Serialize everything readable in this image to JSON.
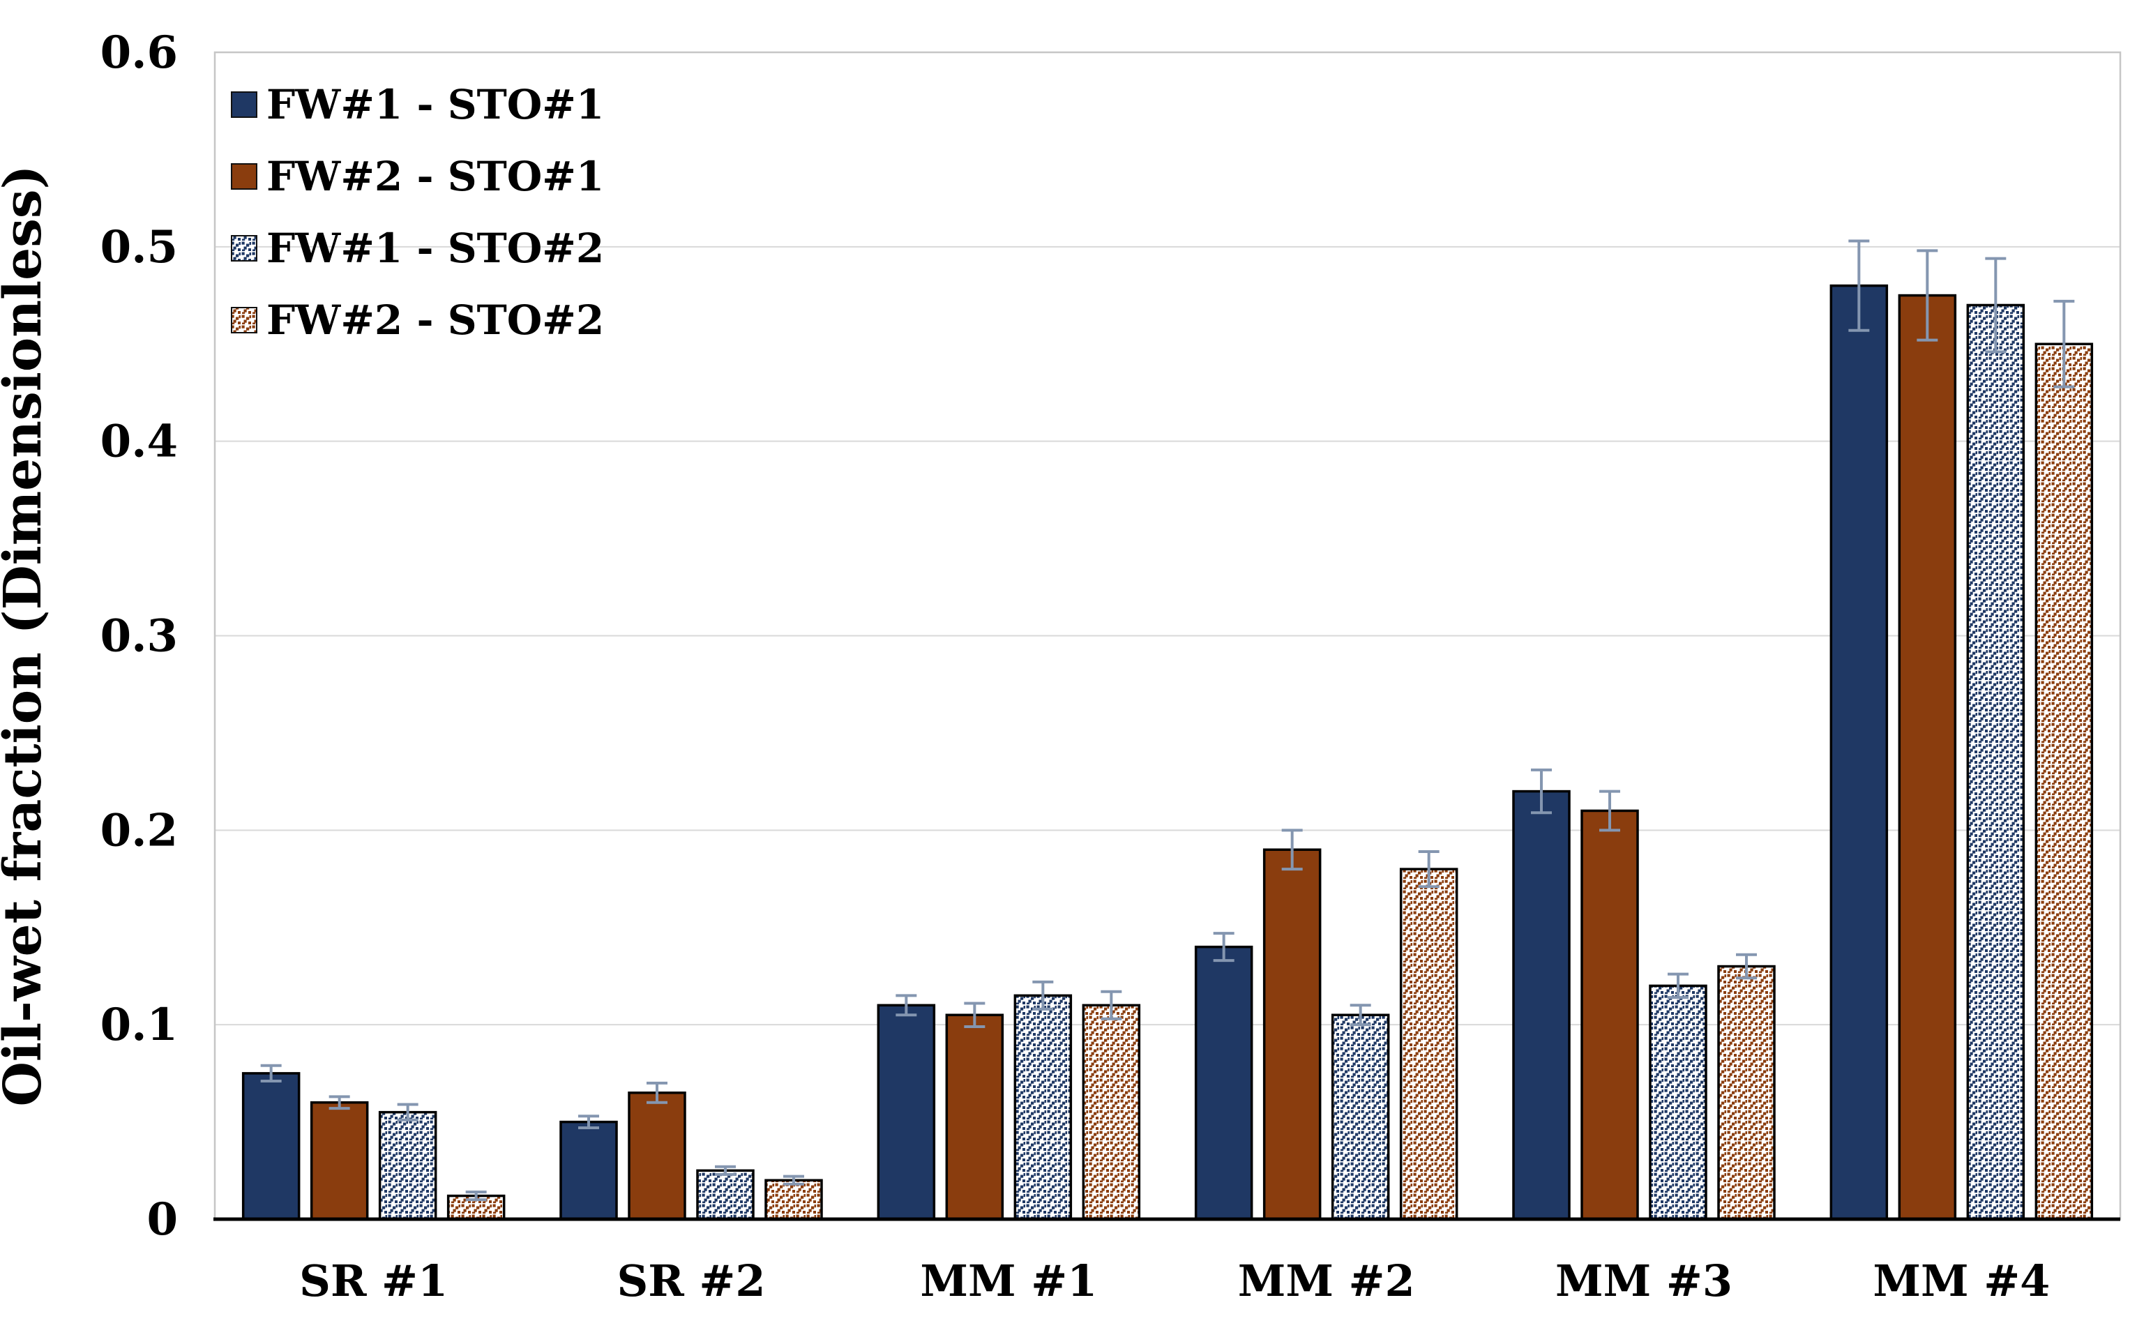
{
  "figure": {
    "background": "#FFFFFF"
  },
  "chart_data": {
    "type": "bar",
    "title": "",
    "xlabel": "",
    "ylabel": "Oil-wet fraction (Dimensionless)",
    "ylim": [
      0,
      0.6
    ],
    "ytick_step": 0.1,
    "ytick_labels": [
      "0",
      "0.1",
      "0.2",
      "0.3",
      "0.4",
      "0.5",
      "0.6"
    ],
    "grid": "horizontal",
    "legend_position": "top-left-inside",
    "categories": [
      "SR #1",
      "SR #2",
      "MM #1",
      "MM #2",
      "MM #3",
      "MM #4"
    ],
    "series": [
      {
        "name": "FW#1 - STO#1",
        "fill_style": "solid",
        "color": "#1F3864",
        "values": [
          0.075,
          0.05,
          0.11,
          0.14,
          0.22,
          0.48
        ],
        "errors": [
          0.004,
          0.003,
          0.005,
          0.007,
          0.011,
          0.023
        ]
      },
      {
        "name": "FW#2 - STO#1",
        "fill_style": "solid",
        "color": "#8A3D0E",
        "values": [
          0.06,
          0.065,
          0.105,
          0.19,
          0.21,
          0.475
        ],
        "errors": [
          0.003,
          0.005,
          0.006,
          0.01,
          0.01,
          0.023
        ]
      },
      {
        "name": "FW#1 - STO#2",
        "fill_style": "dotted",
        "color": "#1F3864",
        "values": [
          0.055,
          0.025,
          0.115,
          0.105,
          0.12,
          0.47
        ],
        "errors": [
          0.004,
          0.002,
          0.007,
          0.005,
          0.006,
          0.024
        ]
      },
      {
        "name": "FW#2 - STO#2",
        "fill_style": "dotted",
        "color": "#8A3D0E",
        "values": [
          0.012,
          0.02,
          0.11,
          0.18,
          0.13,
          0.45
        ],
        "errors": [
          0.002,
          0.002,
          0.007,
          0.009,
          0.006,
          0.022
        ]
      }
    ],
    "colors": {
      "error_bar": "#8496B0",
      "gridline": "#D9D9D9",
      "plot_border": "#C6C6C6",
      "axis_line": "#000000",
      "bar_outline": "#000000",
      "pattern_background": "#FFFFFF",
      "text": "#000000"
    }
  }
}
